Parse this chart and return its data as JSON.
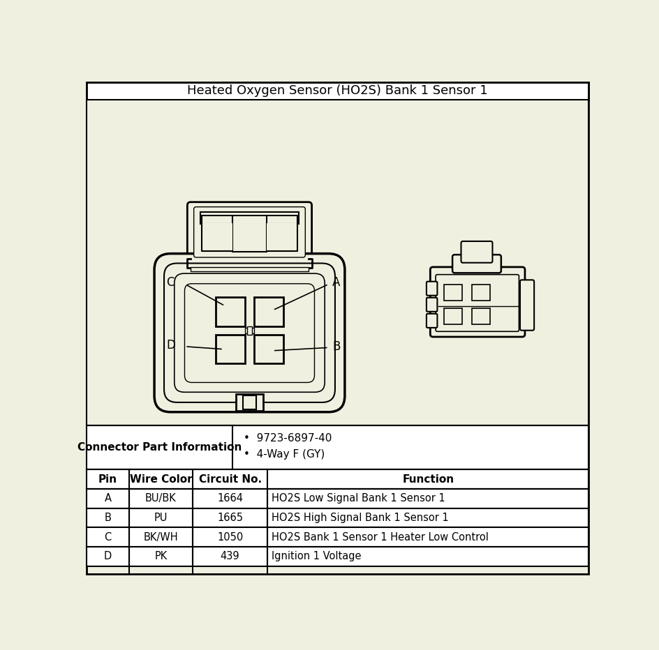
{
  "title": "Heated Oxygen Sensor (HO2S) Bank 1 Sensor 1",
  "bg_color": "#f0f0e0",
  "table_data": {
    "connector_info_label": "Connector Part Information",
    "connector_info_bullets": [
      "9723-6897-40",
      "4-Way F (GY)"
    ],
    "headers": [
      "Pin",
      "Wire Color",
      "Circuit No.",
      "Function"
    ],
    "rows": [
      [
        "A",
        "BU/BK",
        "1664",
        "HO2S Low Signal Bank 1 Sensor 1"
      ],
      [
        "B",
        "PU",
        "1665",
        "HO2S High Signal Bank 1 Sensor 1"
      ],
      [
        "C",
        "BK/WH",
        "1050",
        "HO2S Bank 1 Sensor 1 Heater Low Control"
      ],
      [
        "D",
        "PK",
        "439",
        "Ignition 1 Voltage"
      ]
    ]
  },
  "label_A": "A",
  "label_B": "B",
  "label_C": "C",
  "label_D": "D"
}
